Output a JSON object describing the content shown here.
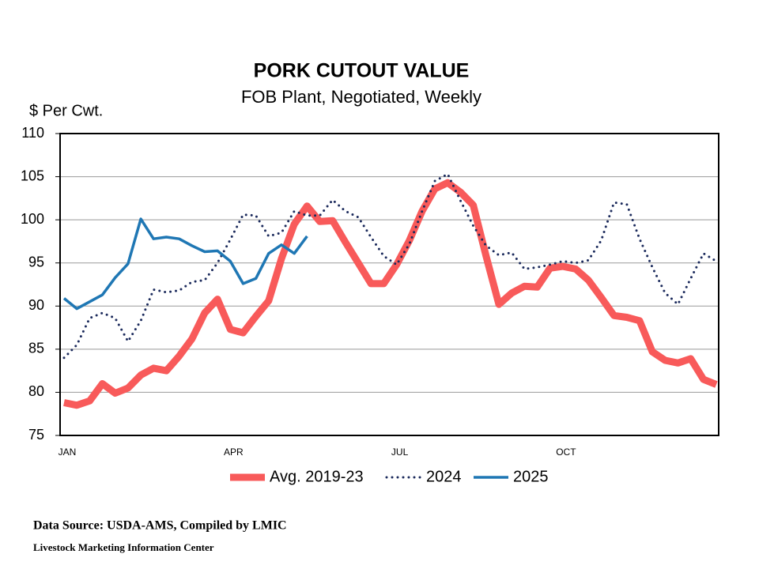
{
  "chart_data": {
    "type": "line",
    "title": "PORK CUTOUT VALUE",
    "subtitle": "FOB Plant, Negotiated, Weekly",
    "y_label": "$ Per Cwt.",
    "categories": [
      "JAN",
      null,
      null,
      null,
      null,
      null,
      null,
      null,
      null,
      null,
      null,
      null,
      null,
      "APR",
      null,
      null,
      null,
      null,
      null,
      null,
      null,
      null,
      null,
      null,
      null,
      null,
      "JUL",
      null,
      null,
      null,
      null,
      null,
      null,
      null,
      null,
      null,
      null,
      null,
      null,
      "OCT",
      null,
      null,
      null,
      null,
      null,
      null,
      null,
      null,
      null,
      null,
      null,
      null
    ],
    "ylim": [
      75,
      110
    ],
    "yticks": [
      75,
      80,
      85,
      90,
      95,
      100,
      105,
      110
    ],
    "grid": true,
    "legend": "bottom",
    "series": [
      {
        "name": "Avg. 2019-23",
        "color": "#f85a5a",
        "style": "thick",
        "values": [
          78.8,
          78.5,
          79,
          81,
          79.9,
          80.5,
          82,
          82.8,
          82.5,
          84.2,
          86.2,
          89.2,
          90.8,
          87.3,
          86.9,
          88.8,
          90.6,
          95.5,
          99.5,
          101.6,
          99.8,
          99.9,
          97.4,
          95,
          92.6,
          92.6,
          94.8,
          97.6,
          101,
          103.6,
          104.3,
          103.2,
          101.7,
          95.8,
          90.2,
          91.5,
          92.3,
          92.2,
          94.4,
          94.6,
          94.3,
          93,
          91,
          88.9,
          88.7,
          88.3,
          84.7,
          83.7,
          83.4,
          83.9,
          81.5,
          80.9
        ]
      },
      {
        "name": "2024",
        "color": "#1b2a5c",
        "style": "dotted",
        "values": [
          84,
          85.5,
          88.6,
          89.2,
          88.6,
          85.9,
          88.3,
          91.9,
          91.6,
          91.8,
          92.8,
          93,
          95,
          97.7,
          100.6,
          100.5,
          98.1,
          98.5,
          101,
          100.5,
          100.5,
          102.3,
          101,
          100.3,
          98,
          95.8,
          94.8,
          97.2,
          101,
          104.5,
          105.3,
          102.2,
          99.3,
          97,
          95.9,
          96.2,
          94.3,
          94.5,
          94.8,
          95.2,
          95,
          95.3,
          97.6,
          102,
          101.8,
          97.8,
          94.5,
          91.5,
          90.2,
          93.2,
          96.1,
          95.2
        ]
      },
      {
        "name": "2025",
        "color": "#1f77b4",
        "style": "solid",
        "values": [
          90.9,
          89.7,
          90.5,
          91.3,
          93.3,
          94.9,
          100.1,
          97.8,
          98,
          97.8,
          97,
          96.3,
          96.4,
          95.2,
          92.6,
          93.2,
          96.1,
          97.1,
          96.1,
          98.1,
          null,
          null,
          null,
          null,
          null,
          null,
          null,
          null,
          null,
          null,
          null,
          null,
          null,
          null,
          null,
          null,
          null,
          null,
          null,
          null,
          null,
          null,
          null,
          null,
          null,
          null,
          null,
          null,
          null,
          null,
          null,
          null
        ]
      }
    ]
  },
  "footer": {
    "source": "Data Source:  USDA-AMS, Compiled by LMIC",
    "organization": "Livestock Marketing Information Center"
  }
}
